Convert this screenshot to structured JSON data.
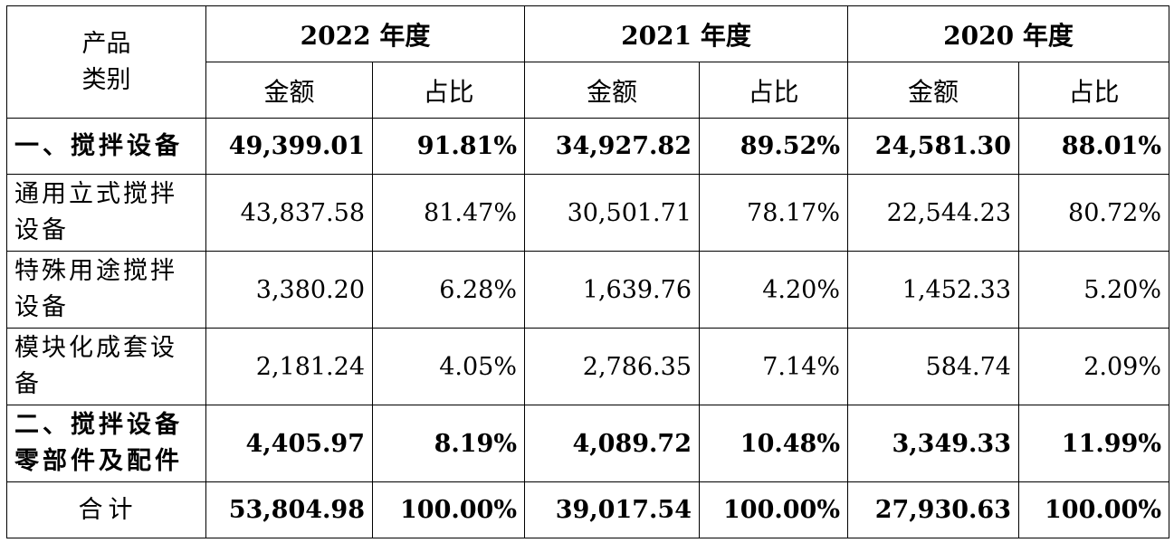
{
  "header": {
    "category_label_line1": "产品",
    "category_label_line2": "类别",
    "years": [
      "2022 年度",
      "2021 年度",
      "2020 年度"
    ],
    "amount_label": "金额",
    "ratio_label": "占比"
  },
  "rows": [
    {
      "category": "一、搅拌设备",
      "bold": true,
      "values": [
        [
          "49,399.01",
          "91.81%"
        ],
        [
          "34,927.82",
          "89.52%"
        ],
        [
          "24,581.30",
          "88.01%"
        ]
      ]
    },
    {
      "category": "通用立式搅拌设备",
      "bold": false,
      "values": [
        [
          "43,837.58",
          "81.47%"
        ],
        [
          "30,501.71",
          "78.17%"
        ],
        [
          "22,544.23",
          "80.72%"
        ]
      ]
    },
    {
      "category": "特殊用途搅拌设备",
      "bold": false,
      "values": [
        [
          "3,380.20",
          "6.28%"
        ],
        [
          "1,639.76",
          "4.20%"
        ],
        [
          "1,452.33",
          "5.20%"
        ]
      ]
    },
    {
      "category": "模块化成套设备",
      "bold": false,
      "values": [
        [
          "2,181.24",
          "4.05%"
        ],
        [
          "2,786.35",
          "7.14%"
        ],
        [
          "584.74",
          "2.09%"
        ]
      ]
    },
    {
      "category": "二、搅拌设备零部件及配件",
      "bold": true,
      "values": [
        [
          "4,405.97",
          "8.19%"
        ],
        [
          "4,089.72",
          "10.48%"
        ],
        [
          "3,349.33",
          "11.99%"
        ]
      ]
    },
    {
      "category": "合计",
      "bold": true,
      "total": true,
      "values": [
        [
          "53,804.98",
          "100.00%"
        ],
        [
          "39,017.54",
          "100.00%"
        ],
        [
          "27,930.63",
          "100.00%"
        ]
      ]
    }
  ]
}
